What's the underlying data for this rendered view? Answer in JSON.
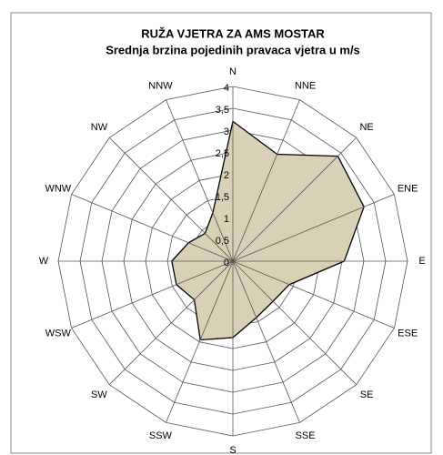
{
  "chart_data": {
    "type": "radar",
    "title": "RUŽA VJETRA ZA AMS MOSTAR",
    "subtitle": "Srednja brzina pojedinih pravaca vjetra u m/s",
    "categories": [
      "N",
      "NNE",
      "NE",
      "ENE",
      "E",
      "ESE",
      "SE",
      "SSE",
      "S",
      "SSW",
      "SW",
      "WSW",
      "W",
      "WNW",
      "NW",
      "NNW"
    ],
    "series": [
      {
        "name": "Srednja brzina",
        "color": "#d9d1b5",
        "values": [
          3.2,
          2.65,
          3.4,
          3.25,
          2.55,
          1.4,
          1.3,
          1.4,
          1.75,
          1.95,
          1.25,
          1.4,
          1.4,
          1.1,
          0.9,
          1.2
        ]
      }
    ],
    "ylim": [
      0,
      4
    ],
    "yticks": [
      0,
      {
        "value": 0.5,
        "label": "0,5"
      },
      1,
      {
        "value": 1.5,
        "label": "1,5"
      },
      2,
      {
        "value": 2.5,
        "label": "2,5"
      },
      3,
      {
        "value": 3.5,
        "label": "3,5"
      },
      4
    ],
    "grid": true
  }
}
